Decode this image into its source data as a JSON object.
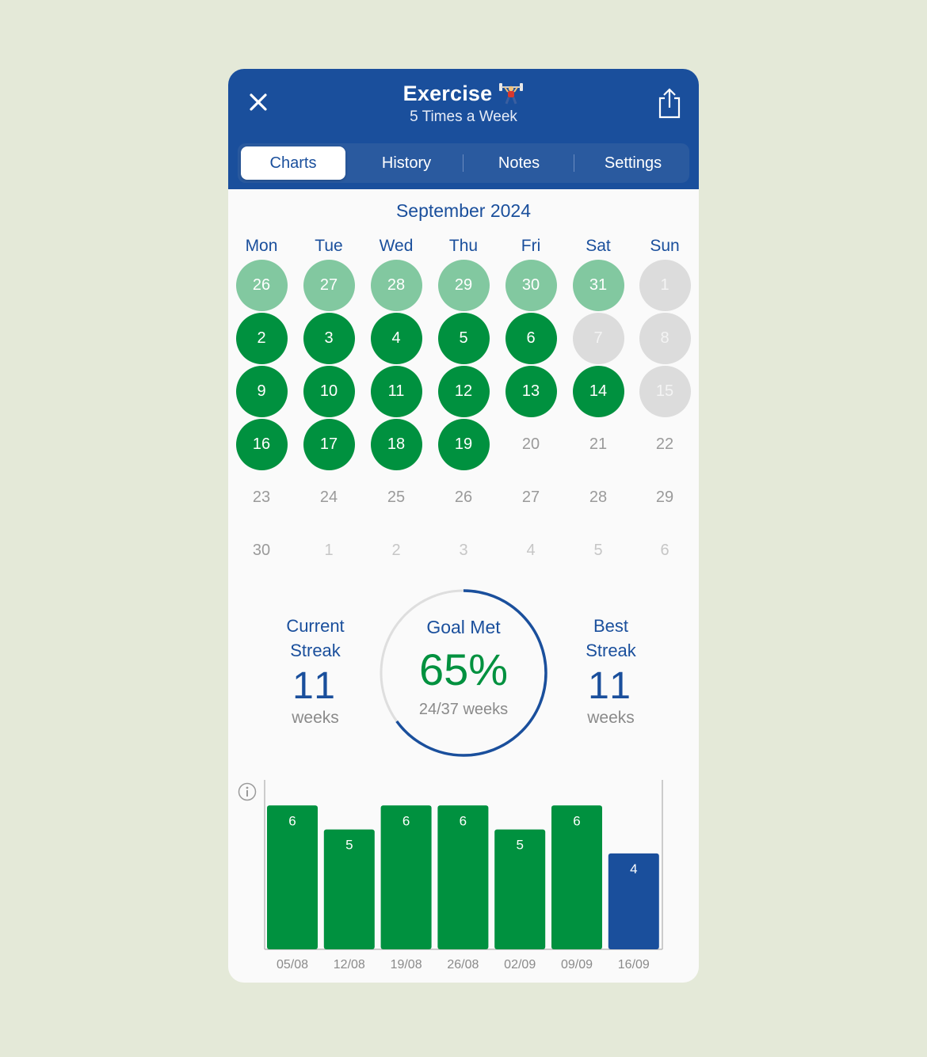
{
  "header": {
    "title": "Exercise",
    "subtitle": "5 Times a Week",
    "close_icon": "close-icon",
    "share_icon": "share-icon",
    "title_icon": "weightlifter-icon"
  },
  "tabs": [
    {
      "label": "Charts",
      "active": true
    },
    {
      "label": "History",
      "active": false
    },
    {
      "label": "Notes",
      "active": false
    },
    {
      "label": "Settings",
      "active": false
    }
  ],
  "calendar": {
    "month_label": "September 2024",
    "weekdays": [
      "Mon",
      "Tue",
      "Wed",
      "Thu",
      "Fri",
      "Sat",
      "Sun"
    ],
    "weeks": [
      [
        {
          "d": "26",
          "s": "prev"
        },
        {
          "d": "27",
          "s": "prev"
        },
        {
          "d": "28",
          "s": "prev"
        },
        {
          "d": "29",
          "s": "prev"
        },
        {
          "d": "30",
          "s": "prev"
        },
        {
          "d": "31",
          "s": "prev"
        },
        {
          "d": "1",
          "s": "miss"
        }
      ],
      [
        {
          "d": "2",
          "s": "done"
        },
        {
          "d": "3",
          "s": "done"
        },
        {
          "d": "4",
          "s": "done"
        },
        {
          "d": "5",
          "s": "done"
        },
        {
          "d": "6",
          "s": "done"
        },
        {
          "d": "7",
          "s": "miss"
        },
        {
          "d": "8",
          "s": "miss"
        }
      ],
      [
        {
          "d": "9",
          "s": "done"
        },
        {
          "d": "10",
          "s": "done"
        },
        {
          "d": "11",
          "s": "done"
        },
        {
          "d": "12",
          "s": "done"
        },
        {
          "d": "13",
          "s": "done"
        },
        {
          "d": "14",
          "s": "done"
        },
        {
          "d": "15",
          "s": "miss"
        }
      ],
      [
        {
          "d": "16",
          "s": "done"
        },
        {
          "d": "17",
          "s": "done"
        },
        {
          "d": "18",
          "s": "done"
        },
        {
          "d": "19",
          "s": "done"
        },
        {
          "d": "20",
          "s": "future"
        },
        {
          "d": "21",
          "s": "future"
        },
        {
          "d": "22",
          "s": "future"
        }
      ],
      [
        {
          "d": "23",
          "s": "future"
        },
        {
          "d": "24",
          "s": "future"
        },
        {
          "d": "25",
          "s": "future"
        },
        {
          "d": "26",
          "s": "future"
        },
        {
          "d": "27",
          "s": "future"
        },
        {
          "d": "28",
          "s": "future"
        },
        {
          "d": "29",
          "s": "future"
        }
      ],
      [
        {
          "d": "30",
          "s": "future"
        },
        {
          "d": "1",
          "s": "next"
        },
        {
          "d": "2",
          "s": "next"
        },
        {
          "d": "3",
          "s": "next"
        },
        {
          "d": "4",
          "s": "next"
        },
        {
          "d": "5",
          "s": "next"
        },
        {
          "d": "6",
          "s": "next"
        }
      ]
    ],
    "colors": {
      "done": "#00913f",
      "prev": "#82c8a0",
      "miss": "#dcdcdc"
    }
  },
  "stats": {
    "current_streak": {
      "label_line1": "Current",
      "label_line2": "Streak",
      "value": "11",
      "unit": "weeks"
    },
    "goal": {
      "label": "Goal Met",
      "percent_text": "65%",
      "detail": "24/37 weeks",
      "fraction": 0.65
    },
    "best_streak": {
      "label_line1": "Best",
      "label_line2": "Streak",
      "value": "11",
      "unit": "weeks"
    }
  },
  "chart_data": {
    "type": "bar",
    "categories": [
      "05/08",
      "12/08",
      "19/08",
      "26/08",
      "02/09",
      "09/09",
      "16/09"
    ],
    "values": [
      6,
      5,
      6,
      6,
      5,
      6,
      4
    ],
    "ylim": [
      0,
      7
    ],
    "bar_colors": [
      "#00913f",
      "#00913f",
      "#00913f",
      "#00913f",
      "#00913f",
      "#00913f",
      "#1a4f9c"
    ],
    "info_icon": "info-icon"
  }
}
